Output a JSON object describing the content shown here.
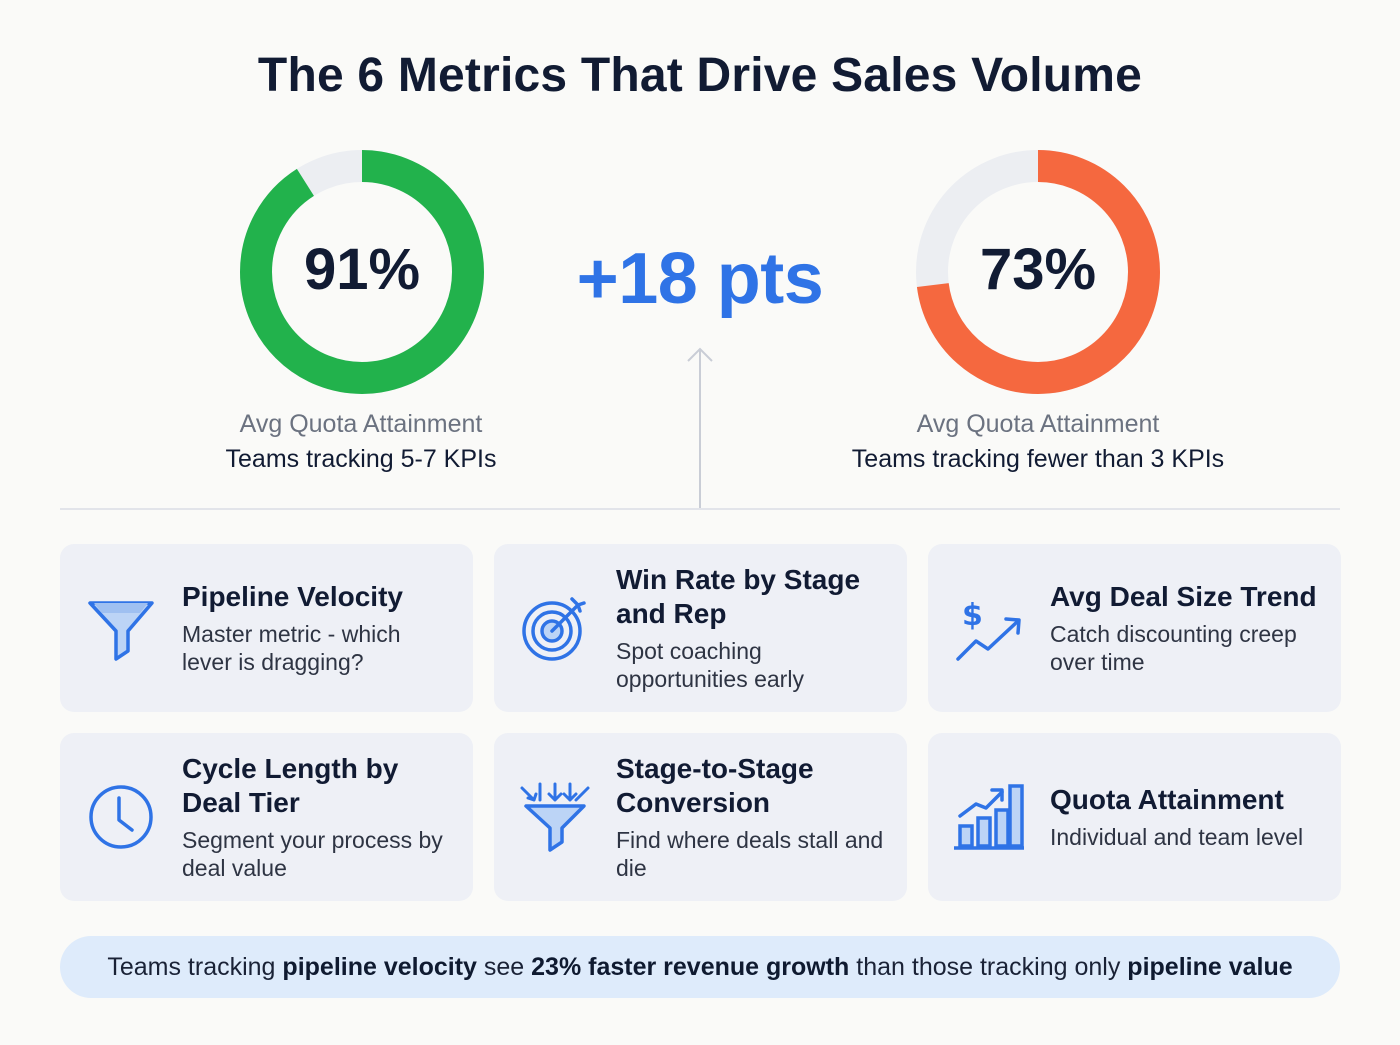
{
  "title": "The 6 Metrics That Drive Sales Volume",
  "stats": {
    "left": {
      "value": "91%",
      "percent": 91,
      "color": "#22b24c",
      "label": "Avg Quota Attainment",
      "sublabel": "Teams tracking 5-7 KPIs"
    },
    "right": {
      "value": "73%",
      "percent": 73,
      "color": "#f5683f",
      "label": "Avg Quota Attainment",
      "sublabel": "Teams tracking fewer than 3 KPIs"
    },
    "delta": "+18 pts"
  },
  "colors": {
    "accent": "#2f73e6",
    "track": "#eceef2",
    "icon": "#2f73e6"
  },
  "metrics": [
    {
      "title": "Pipeline Velocity",
      "desc": "Master metric - which lever is dragging?",
      "icon": "funnel-icon"
    },
    {
      "title": "Win Rate by Stage and Rep",
      "desc": "Spot coaching opportunities early",
      "icon": "target-icon"
    },
    {
      "title": "Avg Deal Size Trend",
      "desc": "Catch discounting creep over time",
      "icon": "dollar-trend-icon"
    },
    {
      "title": "Cycle Length by Deal Tier",
      "desc": "Segment your process by deal value",
      "icon": "clock-icon"
    },
    {
      "title": "Stage-to-Stage Conversion",
      "desc": "Find where deals stall and die",
      "icon": "conversion-funnel-icon"
    },
    {
      "title": "Quota Attainment",
      "desc": "Individual and team level",
      "icon": "bar-chart-icon"
    }
  ],
  "banner": {
    "p1": "Teams tracking ",
    "b1": "pipeline velocity",
    "p2": " see ",
    "b2": "23% faster revenue growth",
    "p3": " than those tracking only ",
    "b3": "pipeline value"
  }
}
